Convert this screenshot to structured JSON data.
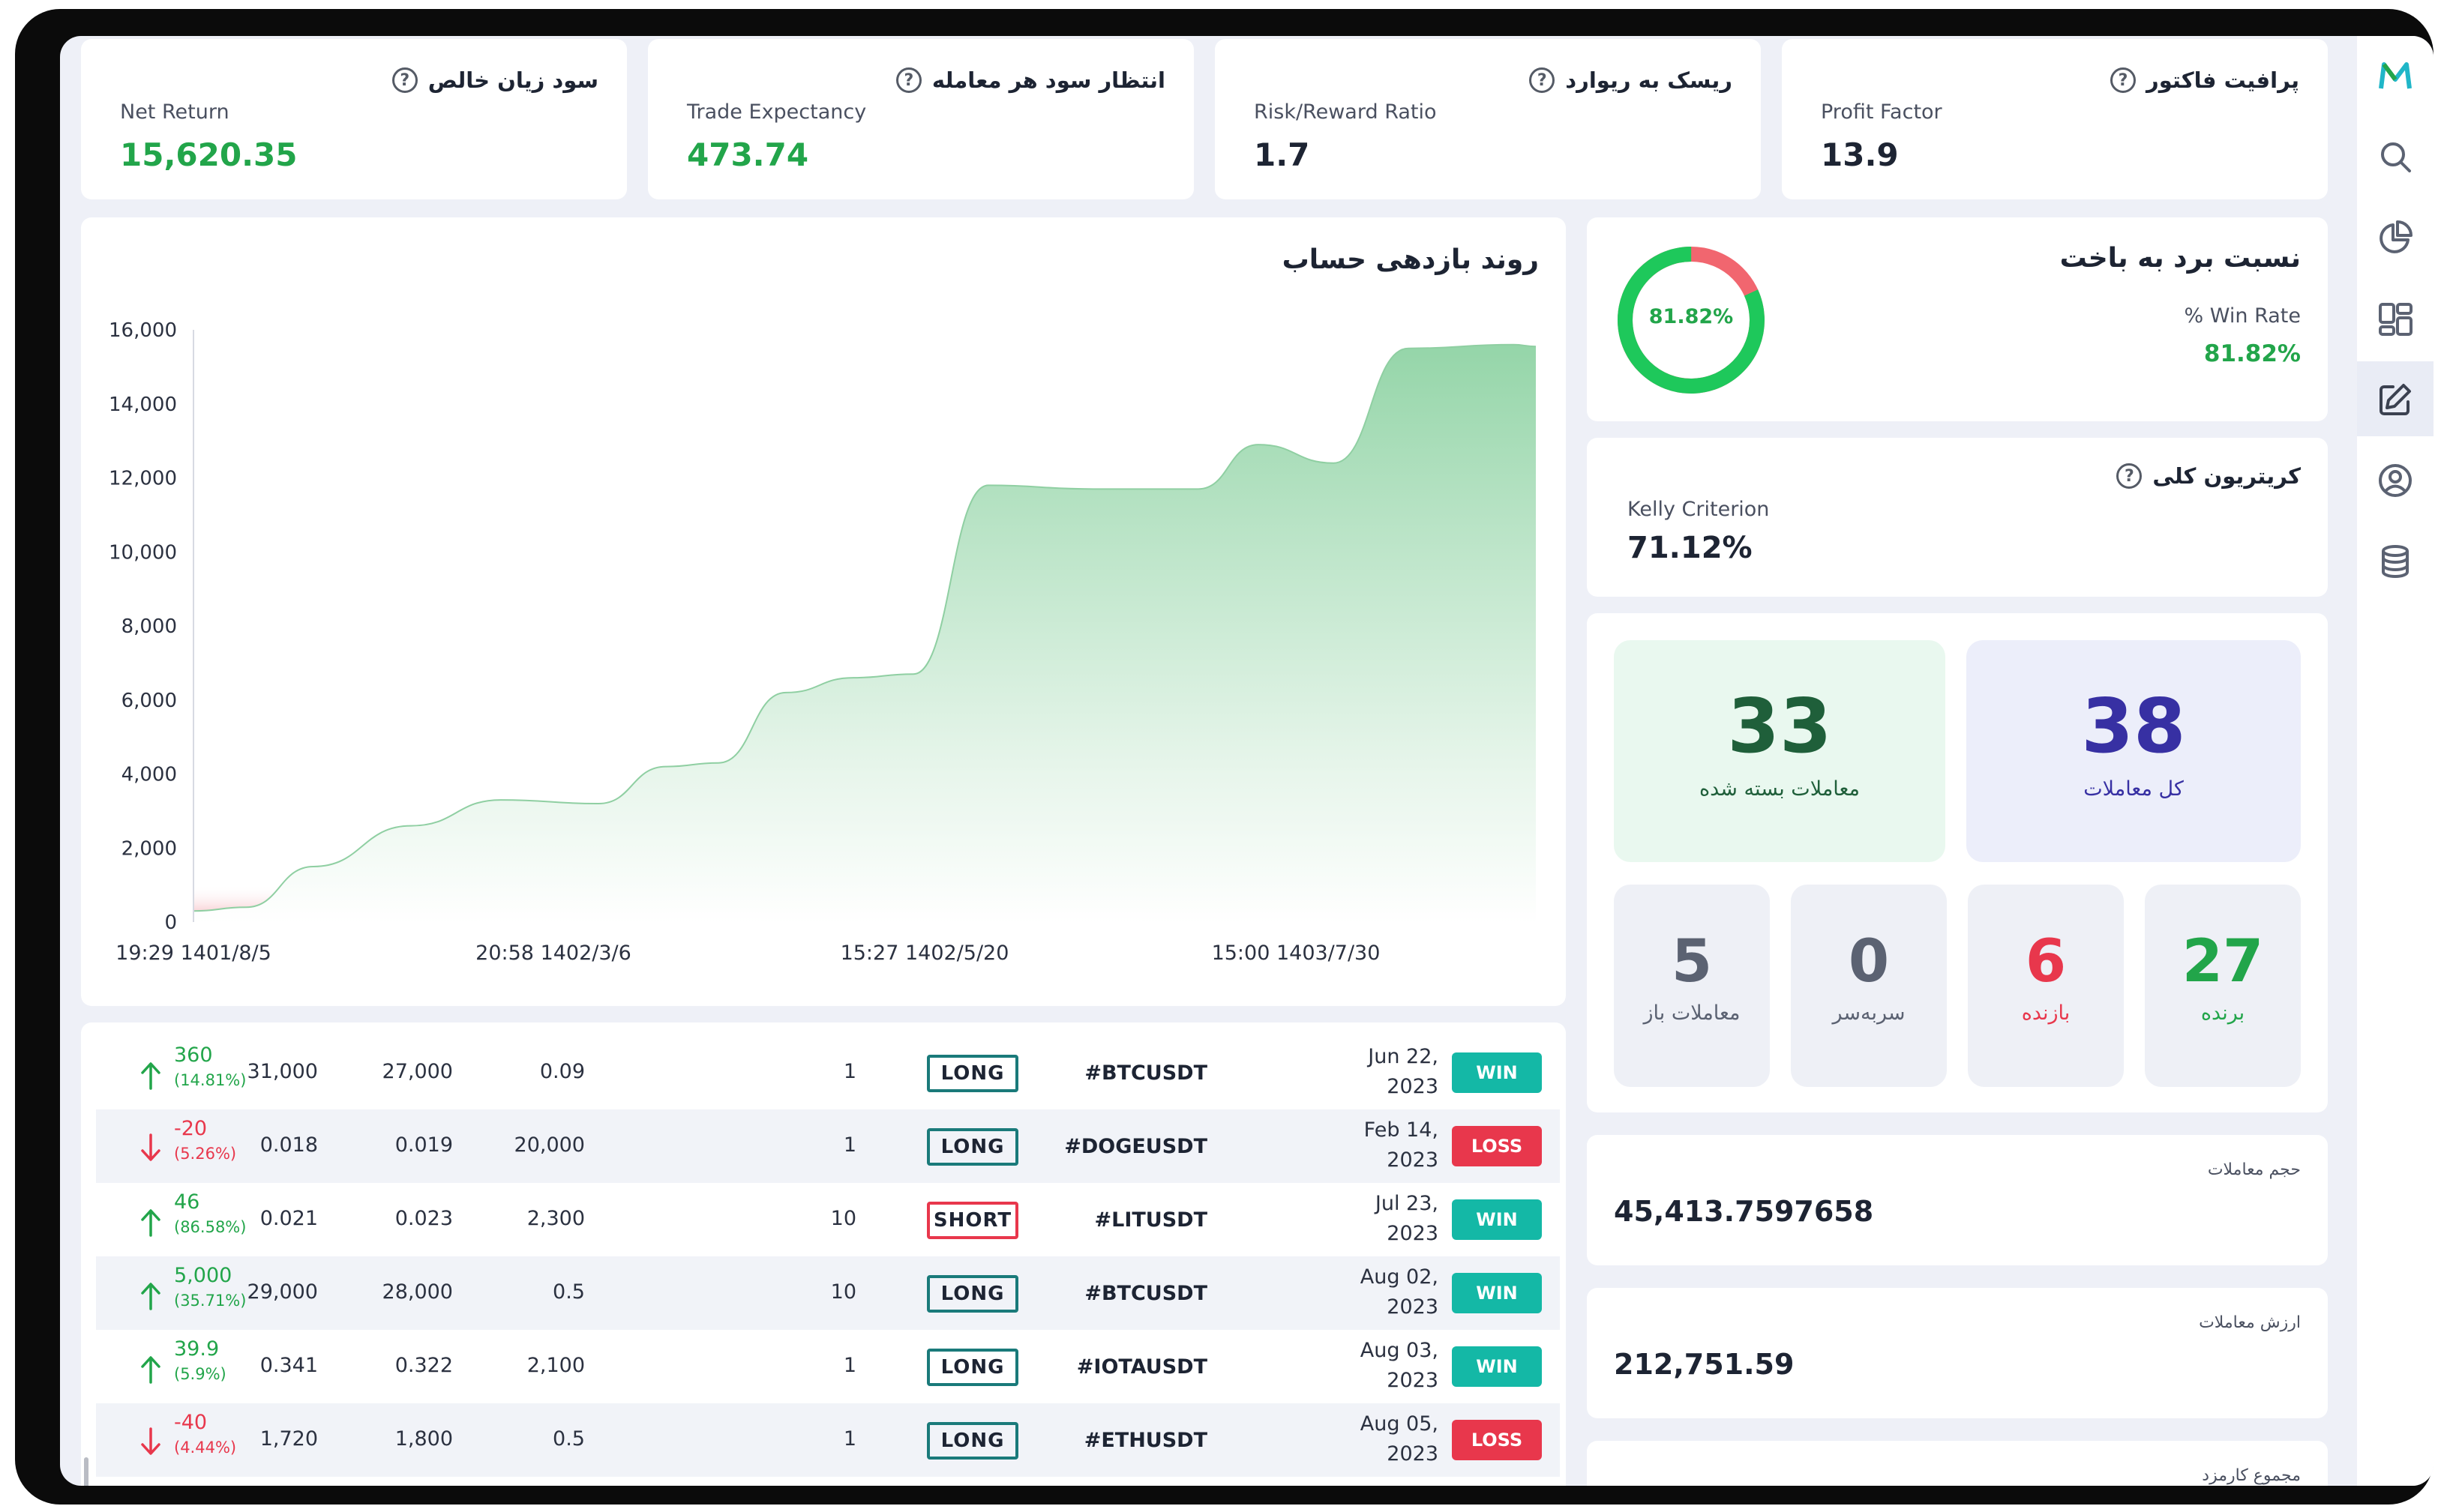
{
  "kpis": [
    {
      "fa": "سود زیان خالص",
      "en": "Net Return",
      "value": "15,620.35",
      "color": "green"
    },
    {
      "fa": "انتظار سود هر معامله",
      "en": "Trade Expectancy",
      "value": "473.74",
      "color": "green"
    },
    {
      "fa": "ریسک به ریوارد",
      "en": "Risk/Reward Ratio",
      "value": "1.7",
      "color": "dark"
    },
    {
      "fa": "پرافیت فاکتور",
      "en": "Profit Factor",
      "value": "13.9",
      "color": "dark"
    }
  ],
  "chart": {
    "title": "روند بازدهی حساب",
    "chart_data": {
      "type": "area",
      "y_ticks": [
        "16,000",
        "14,000",
        "12,000",
        "10,000",
        "8,000",
        "6,000",
        "4,000",
        "2,000",
        "0"
      ],
      "x_ticks": [
        "19:29 1401/8/5",
        "20:58 1402/3/6",
        "15:27 1402/5/20",
        "15:00 1403/7/30"
      ],
      "ylim": [
        0,
        16000
      ],
      "values": [
        300,
        400,
        1500,
        2600,
        3300,
        3200,
        4200,
        4300,
        6200,
        6600,
        6700,
        11800,
        11700,
        11700,
        12900,
        12400,
        15500,
        15600,
        15550
      ]
    }
  },
  "win_rate": {
    "title": "نسبت برد به باخت",
    "label": "% Win Rate",
    "value": "81.82%",
    "ring_label": "81.82%",
    "fraction": 0.8182
  },
  "kelly": {
    "fa": "کریتریون کلی",
    "en": "Kelly Criterion",
    "value": "71.12%"
  },
  "counts": {
    "closed": {
      "value": "33",
      "label": "معاملات بسته شده"
    },
    "total": {
      "value": "38",
      "label": "کل معاملات"
    },
    "open": {
      "value": "5",
      "label": "معاملات باز"
    },
    "breakeven": {
      "value": "0",
      "label": "سربه‌سر"
    },
    "losers": {
      "value": "6",
      "label": "بازنده"
    },
    "winners": {
      "value": "27",
      "label": "برنده"
    }
  },
  "volume": {
    "label": "حجم معاملات",
    "value": "45,413.7597658"
  },
  "trade_value": {
    "label": "ارزش معاملات",
    "value": "212,751.59"
  },
  "fees": {
    "label": "مجموع کارمزد"
  },
  "trades": [
    {
      "pnl": "360",
      "pct": "(14.81%)",
      "dir": "up",
      "exit": "31,000",
      "entry": "27,000",
      "size": "0.09",
      "lev": "1",
      "side": "LONG",
      "symbol": "#BTCUSDT",
      "date1": "Jun 22,",
      "date2": "2023",
      "result": "WIN"
    },
    {
      "pnl": "-20",
      "pct": "(5.26%)",
      "dir": "down",
      "exit": "0.018",
      "entry": "0.019",
      "size": "20,000",
      "lev": "1",
      "side": "LONG",
      "symbol": "#DOGEUSDT",
      "date1": "Feb 14,",
      "date2": "2023",
      "result": "LOSS"
    },
    {
      "pnl": "46",
      "pct": "(86.58%)",
      "dir": "up",
      "exit": "0.021",
      "entry": "0.023",
      "size": "2,300",
      "lev": "10",
      "side": "SHORT",
      "symbol": "#LITUSDT",
      "date1": "Jul 23,",
      "date2": "2023",
      "result": "WIN"
    },
    {
      "pnl": "5,000",
      "pct": "(35.71%)",
      "dir": "up",
      "exit": "29,000",
      "entry": "28,000",
      "size": "0.5",
      "lev": "10",
      "side": "LONG",
      "symbol": "#BTCUSDT",
      "date1": "Aug 02,",
      "date2": "2023",
      "result": "WIN"
    },
    {
      "pnl": "39.9",
      "pct": "(5.9%)",
      "dir": "up",
      "exit": "0.341",
      "entry": "0.322",
      "size": "2,100",
      "lev": "1",
      "side": "LONG",
      "symbol": "#IOTAUSDT",
      "date1": "Aug 03,",
      "date2": "2023",
      "result": "WIN"
    },
    {
      "pnl": "-40",
      "pct": "(4.44%)",
      "dir": "down",
      "exit": "1,720",
      "entry": "1,800",
      "size": "0.5",
      "lev": "1",
      "side": "LONG",
      "symbol": "#ETHUSDT",
      "date1": "Aug 05,",
      "date2": "2023",
      "result": "LOSS"
    }
  ],
  "sidebar_icons": [
    "logo-icon",
    "search-icon",
    "pie-chart-icon",
    "dashboard-icon",
    "edit-icon",
    "user-icon",
    "database-icon"
  ],
  "colors": {
    "green": "#22a54a",
    "red": "#e8374c",
    "teal": "#14b8a6",
    "indigo": "#3730a3"
  }
}
